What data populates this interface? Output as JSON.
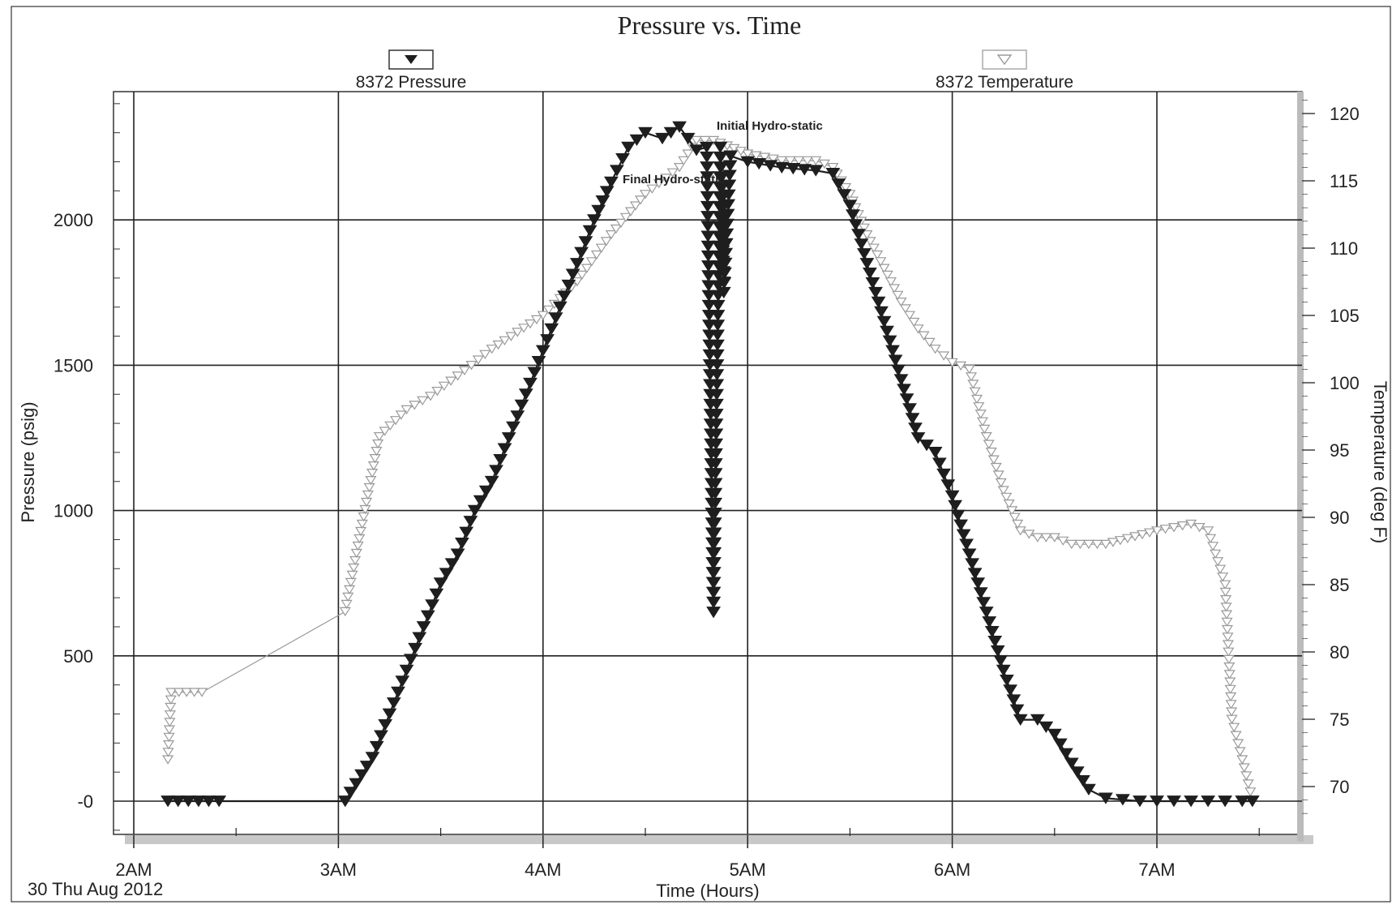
{
  "chart_data": {
    "type": "scatter",
    "title": "Pressure vs. Time",
    "xlabel": "Time (Hours)",
    "ylabel": "Pressure (psig)",
    "y2label": "Temperature (deg F)",
    "date_label": "30 Thu Aug 2012",
    "x_ticks": [
      "2AM",
      "3AM",
      "4AM",
      "5AM",
      "6AM",
      "7AM"
    ],
    "y_ticks": [
      "-0",
      "500",
      "1000",
      "1500",
      "2000"
    ],
    "y2_ticks": [
      "70",
      "75",
      "80",
      "85",
      "90",
      "95",
      "100",
      "105",
      "110",
      "115",
      "120"
    ],
    "xlim": [
      "2:00",
      "7:45"
    ],
    "ylim": [
      -120,
      2480
    ],
    "y2lim": [
      67.5,
      121
    ],
    "grid": true,
    "legend_position": "top",
    "series": [
      {
        "name": "8372 Pressure",
        "axis": "left",
        "marker": "filled-down-triangle",
        "color": "#1e1e1e",
        "x": [
          "2:10",
          "2:25",
          "3:02",
          "3:10",
          "3:15",
          "3:20",
          "3:25",
          "3:30",
          "3:35",
          "3:40",
          "3:45",
          "3:50",
          "3:55",
          "4:00",
          "4:05",
          "4:10",
          "4:15",
          "4:20",
          "4:25",
          "4:30",
          "4:35",
          "4:40",
          "4:45",
          "4:48",
          "4:50",
          "4:52",
          "4:53",
          "4:55",
          "5:00",
          "5:10",
          "5:20",
          "5:25",
          "5:30",
          "5:35",
          "5:40",
          "5:45",
          "5:50",
          "5:55",
          "6:00",
          "6:05",
          "6:10",
          "6:15",
          "6:20",
          "6:25",
          "6:30",
          "6:35",
          "6:40",
          "6:45",
          "6:50",
          "6:55",
          "7:00",
          "7:05",
          "7:10",
          "7:15",
          "7:20",
          "7:25",
          "7:28"
        ],
        "y": [
          0,
          0,
          0,
          150,
          300,
          450,
          600,
          750,
          850,
          1000,
          1100,
          1250,
          1400,
          1550,
          1700,
          1850,
          2000,
          2130,
          2250,
          2300,
          2280,
          2320,
          2240,
          2250,
          650,
          2250,
          1750,
          2220,
          2200,
          2180,
          2170,
          2160,
          2050,
          1850,
          1650,
          1450,
          1250,
          1200,
          1050,
          850,
          650,
          450,
          280,
          280,
          230,
          130,
          40,
          10,
          5,
          0,
          0,
          0,
          0,
          0,
          0,
          0,
          0
        ]
      },
      {
        "name": "8372 Temperature",
        "axis": "right",
        "marker": "open-down-triangle",
        "color": "#9a9a9a",
        "x": [
          "2:10",
          "2:11",
          "2:20",
          "3:02",
          "3:12",
          "3:20",
          "3:27",
          "3:35",
          "3:45",
          "4:00",
          "4:10",
          "4:20",
          "4:30",
          "4:40",
          "4:45",
          "4:50",
          "5:00",
          "5:10",
          "5:20",
          "5:25",
          "5:30",
          "5:35",
          "5:40",
          "5:45",
          "5:50",
          "5:55",
          "6:00",
          "6:05",
          "6:10",
          "6:15",
          "6:20",
          "6:25",
          "6:30",
          "6:35",
          "6:45",
          "7:00",
          "7:10",
          "7:15",
          "7:20",
          "7:22",
          "7:25",
          "7:28"
        ],
        "y": [
          72,
          77,
          77,
          83,
          96,
          98,
          99,
          100.5,
          102.5,
          105,
          107.5,
          111,
          114,
          116,
          118,
          118,
          117,
          116.5,
          116.5,
          116,
          114,
          111,
          108.5,
          106,
          104,
          102.5,
          101.5,
          101,
          96,
          92,
          89,
          88.5,
          88.5,
          88,
          88,
          89,
          89.5,
          89,
          85,
          75,
          72,
          69
        ]
      }
    ],
    "annotations": [
      "Initial Hydro-static",
      "Final Hydro-static"
    ]
  }
}
